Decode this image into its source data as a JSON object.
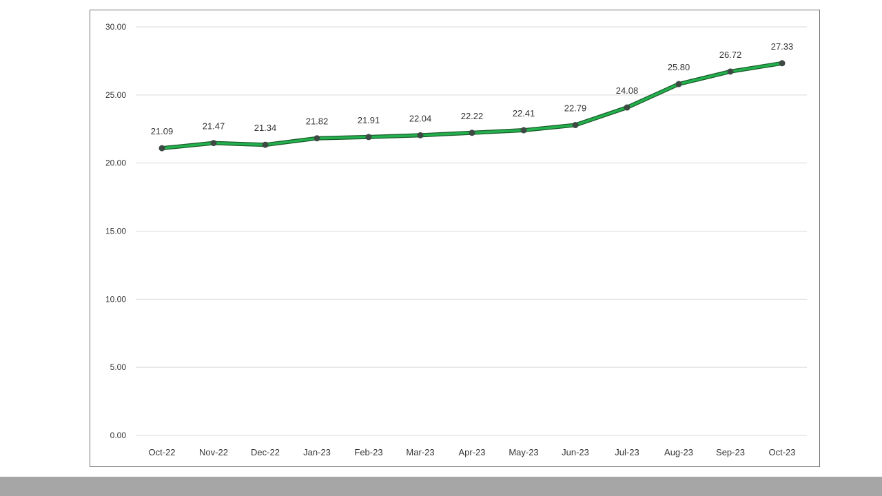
{
  "chart_data": {
    "type": "line",
    "title": "",
    "xlabel": "",
    "ylabel": "",
    "categories": [
      "Oct-22",
      "Nov-22",
      "Dec-22",
      "Jan-23",
      "Feb-23",
      "Mar-23",
      "Apr-23",
      "May-23",
      "Jun-23",
      "Jul-23",
      "Aug-23",
      "Sep-23",
      "Oct-23"
    ],
    "series": [
      {
        "values": [
          21.09,
          21.47,
          21.34,
          21.82,
          21.91,
          22.04,
          22.22,
          22.41,
          22.79,
          24.08,
          25.8,
          26.72,
          27.33
        ],
        "labels": [
          "21.09",
          "21.47",
          "21.34",
          "21.82",
          "21.91",
          "22.04",
          "22.22",
          "22.41",
          "22.79",
          "24.08",
          "25.80",
          "26.72",
          "27.33"
        ]
      }
    ],
    "ylim": [
      0,
      30
    ],
    "yticks": [
      "0.00",
      "5.00",
      "10.00",
      "15.00",
      "20.00",
      "25.00",
      "30.00"
    ],
    "grid": true,
    "legend": "none",
    "colors": {
      "line": "#22b14c",
      "line_outline": "#1c5a2c",
      "marker": "#3d4a44",
      "grid": "#d9d9d9",
      "text": "#333333"
    }
  }
}
